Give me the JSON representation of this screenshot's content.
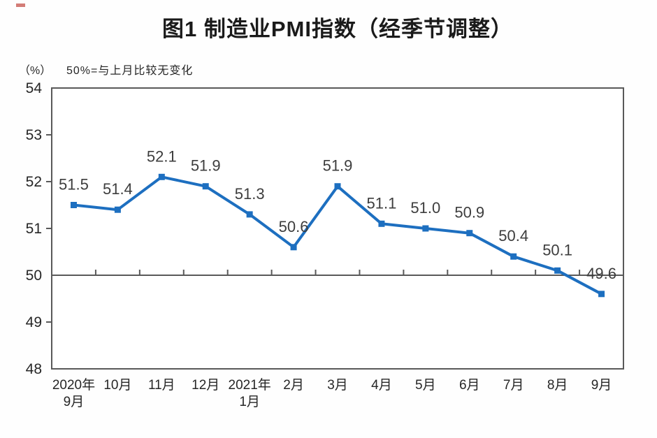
{
  "header": {
    "title": "图1  制造业PMI指数（经季节调整）"
  },
  "chart_data": {
    "type": "line",
    "title": "图1  制造业PMI指数（经季节调整）",
    "unit_label": "（%）",
    "annotation": "50%=与上月比较无变化",
    "categories": [
      "2020年\n9月",
      "10月",
      "11月",
      "12月",
      "2021年\n1月",
      "2月",
      "3月",
      "4月",
      "5月",
      "6月",
      "7月",
      "8月",
      "9月"
    ],
    "series": [
      {
        "name": "制造业PMI指数",
        "values": [
          51.5,
          51.4,
          52.1,
          51.9,
          51.3,
          50.6,
          51.9,
          51.1,
          51.0,
          50.9,
          50.4,
          50.1,
          49.6
        ]
      }
    ],
    "data_labels": [
      "51.5",
      "51.4",
      "52.1",
      "51.9",
      "51.3",
      "50.6",
      "51.9",
      "51.1",
      "51.0",
      "50.9",
      "50.4",
      "50.1",
      "49.6"
    ],
    "ylim": [
      48,
      54
    ],
    "yticks": [
      48,
      49,
      50,
      51,
      52,
      53,
      54
    ],
    "reference_line": 50,
    "grid": false,
    "legend_position": "none",
    "marker": "square",
    "colors": {
      "line": "#1d6fc0",
      "marker": "#1d6fc0",
      "axis": "#595959",
      "tick_text": "#262626",
      "data_label": "#3d3d3d"
    }
  }
}
